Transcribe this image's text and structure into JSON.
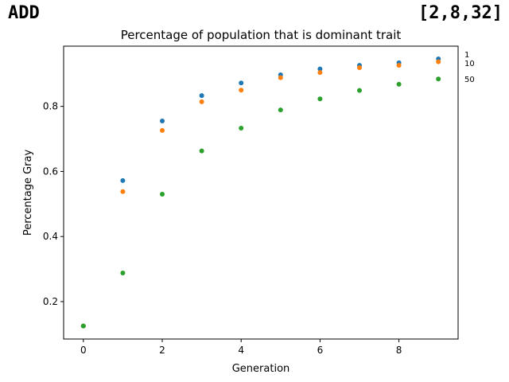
{
  "header": {
    "left_label": "ADD",
    "right_label": "[2,8,32]"
  },
  "chart_data": {
    "type": "scatter",
    "title": "Percentage of population that is dominant trait",
    "xlabel": "Generation",
    "ylabel": "Percentage Gray",
    "xlim": [
      -0.5,
      9.5
    ],
    "ylim": [
      0.085,
      0.985
    ],
    "xticks": [
      0,
      2,
      4,
      6,
      8
    ],
    "yticks": [
      0.2,
      0.4,
      0.6,
      0.8
    ],
    "grid": false,
    "x": [
      0,
      1,
      2,
      3,
      4,
      5,
      6,
      7,
      8,
      9
    ],
    "series": [
      {
        "name": "1",
        "color": "#1f77b4",
        "values": [
          0.125,
          0.572,
          0.755,
          0.833,
          0.872,
          0.897,
          0.915,
          0.926,
          0.934,
          0.946
        ]
      },
      {
        "name": "10",
        "color": "#ff7f0e",
        "values": [
          0.125,
          0.538,
          0.726,
          0.814,
          0.85,
          0.888,
          0.904,
          0.919,
          0.926,
          0.937
        ]
      },
      {
        "name": "50",
        "color": "#2ca02c",
        "values": [
          0.125,
          0.288,
          0.53,
          0.663,
          0.733,
          0.789,
          0.823,
          0.849,
          0.868,
          0.884
        ]
      }
    ]
  }
}
